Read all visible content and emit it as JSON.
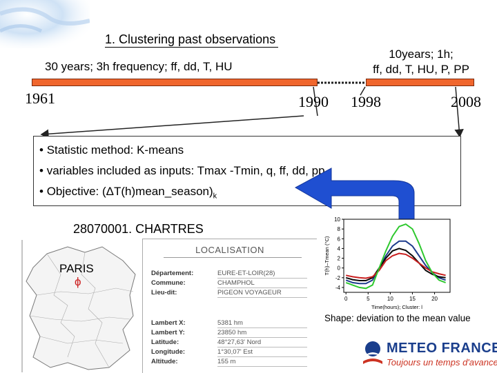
{
  "slide_title": "1. Clustering past observations",
  "timeline": {
    "segment1_label": "30 years; 3h frequency; ff, dd, T, HU",
    "segment2_label_line1": "10years; 1h;",
    "segment2_label_line2": "ff, dd, T, HU, P, PP",
    "years": [
      "1961",
      "1990",
      "1998",
      "2008"
    ]
  },
  "method_box": {
    "bullet1": "Statistic method: K-means",
    "bullet2": "variables included as inputs: Tmax -Tmin, q, ff, dd, pp",
    "bullet3_prefix": "Objective:  (ΔT(h)mean_season)",
    "bullet3_sub": "k"
  },
  "station": {
    "title": "28070001. CHARTRES",
    "map_label": "PARIS",
    "card_title": "LOCALISATION",
    "rows": [
      {
        "key": "Département:",
        "value": "EURE-ET-LOIR(28)"
      },
      {
        "key": "Commune:",
        "value": "CHAMPHOL"
      },
      {
        "key": "Lieu-dit:",
        "value": "PIGEON VOYAGEUR"
      },
      {
        "key": "Lambert X:",
        "value": "5381 hm"
      },
      {
        "key": "Lambert Y:",
        "value": "23850 hm"
      },
      {
        "key": "Latitude:",
        "value": "48°27,63' Nord"
      },
      {
        "key": "Longitude:",
        "value": "1°30,07' Est"
      },
      {
        "key": "Altitude:",
        "value": "155 m"
      }
    ]
  },
  "chart_data": {
    "type": "line",
    "ylabel": "T(h)–Tmean (°C)",
    "xlabel": "Time(hours); Cluster: l",
    "x": [
      0,
      1.5,
      3,
      4.5,
      6,
      7.5,
      9,
      10.5,
      12,
      13.5,
      15,
      16.5,
      18,
      19.5,
      21,
      22.5
    ],
    "xticks": [
      0,
      5,
      10,
      15,
      20
    ],
    "yticks": [
      -4,
      -2,
      0,
      2,
      4,
      6,
      8,
      10
    ],
    "ylim": [
      -5,
      10
    ],
    "xlim": [
      -0.5,
      23.5
    ],
    "grid": false,
    "series": [
      {
        "color": "#1e3c8c",
        "values": [
          -2.5,
          -3,
          -3.2,
          -3.2,
          -2.5,
          0,
          2.5,
          4.5,
          5.5,
          5.5,
          4.5,
          2.5,
          0.5,
          -1,
          -2,
          -2.5
        ]
      },
      {
        "color": "#0a0a0a",
        "values": [
          -2,
          -2.4,
          -2.6,
          -2.6,
          -2,
          0,
          2,
          3.5,
          4,
          3.6,
          2.5,
          1,
          -0.5,
          -1.3,
          -1.8,
          -2
        ]
      },
      {
        "color": "#c81e1e",
        "values": [
          -1.5,
          -1.8,
          -2,
          -2.1,
          -1.8,
          -0.5,
          1.5,
          2.5,
          3,
          2.8,
          2,
          1,
          0,
          -0.8,
          -1.2,
          -1.5
        ]
      },
      {
        "color": "#2ec82e",
        "values": [
          -3,
          -3.5,
          -4,
          -4.2,
          -3.5,
          0,
          3.5,
          6.5,
          8.5,
          9,
          8,
          5,
          1.5,
          -1,
          -2.5,
          -3
        ]
      }
    ]
  },
  "chart_caption": "Shape: deviation to the mean value",
  "logo": {
    "name": "METEO FRANCE",
    "tagline": "Toujours un temps d'avance"
  },
  "colors": {
    "timeline_bar": "#f0662d",
    "arrow_blue": "#1f4fd1"
  }
}
